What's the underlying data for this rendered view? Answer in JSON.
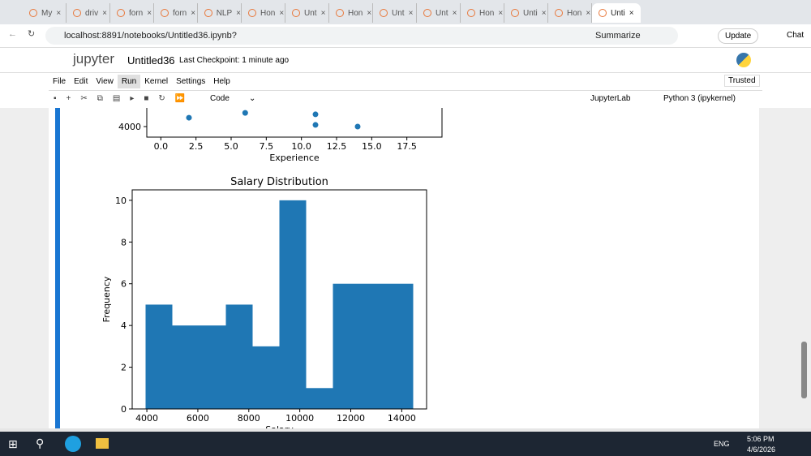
{
  "browser": {
    "tabs": [
      "My",
      "driv",
      "forn",
      "forn",
      "NLP",
      "Hon",
      "Unt",
      "Hon",
      "Unt",
      "Unt",
      "Hon",
      "Unti",
      "Hon",
      "Unti"
    ],
    "address": "localhost:8891/notebooks/Untitled36.ipynb?",
    "summarize": "Summarize",
    "update": "Update",
    "chat": "Chat"
  },
  "jupyter": {
    "logo": "jupyter",
    "notebook_name": "Untitled36",
    "checkpoint": "Last Checkpoint: 1 minute ago",
    "menu": [
      "File",
      "Edit",
      "View",
      "Run",
      "Kernel",
      "Settings",
      "Help"
    ],
    "trusted": "Trusted",
    "cell_type": "Code",
    "jupyterlab": "JupyterLab",
    "kernel": "Python 3 (ipykernel)"
  },
  "chart_data": [
    {
      "type": "scatter",
      "x_label": "Experience",
      "x": [
        2,
        6,
        11,
        11,
        14
      ],
      "values": [
        4420,
        4650,
        4580,
        4080,
        4000
      ],
      "color": "#1f77b4",
      "xlim": [
        -1,
        20
      ],
      "ylim": [
        3500,
        15000
      ],
      "xticks": [
        {
          "value": 0,
          "label": "0.0"
        },
        {
          "value": 2.5,
          "label": "2.5"
        },
        {
          "value": 5,
          "label": "5.0"
        },
        {
          "value": 7.5,
          "label": "7.5"
        },
        {
          "value": 10,
          "label": "10.0"
        },
        {
          "value": 12.5,
          "label": "12.5"
        },
        {
          "value": 15,
          "label": "15.0"
        },
        {
          "value": 17.5,
          "label": "17.5"
        }
      ],
      "yticks": [
        4000
      ]
    },
    {
      "type": "histogram",
      "title": "Salary Distribution",
      "x_label": "Salary",
      "y_label": "Frequency",
      "bins": [
        3950,
        5000,
        6050,
        7100,
        8150,
        9200,
        10250,
        11300,
        12350,
        13400,
        14450
      ],
      "values": [
        5,
        4,
        4,
        5,
        3,
        10,
        1,
        6,
        6,
        6
      ],
      "color": "#1f77b4",
      "xlim": [
        3425,
        14975
      ],
      "ylim": [
        0,
        10.5
      ],
      "xticks": [
        4000,
        6000,
        8000,
        10000,
        12000,
        14000
      ],
      "yticks": [
        0,
        2,
        4,
        6,
        8,
        10
      ]
    }
  ],
  "taskbar": {
    "language": "ENG",
    "time": "5:06 PM",
    "date": "4/6/2026"
  }
}
